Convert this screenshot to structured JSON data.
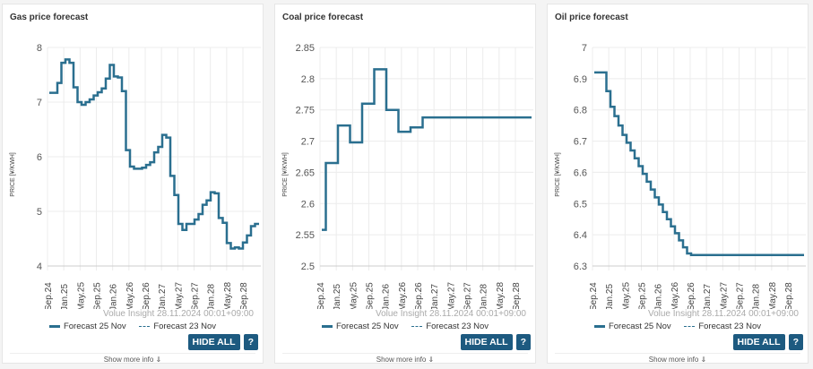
{
  "legend": {
    "series1": "Forecast 25 Nov",
    "series2": "Forecast 23 Nov"
  },
  "watermark": "Volue Insight 28.11.2024 00:01+09:00",
  "buttons": {
    "hide_all": "HIDE ALL",
    "help": "?"
  },
  "show_more": "Show more info ⇓",
  "colors": {
    "line": "#2a6f8f",
    "button": "#1d5a80"
  },
  "chart_data": [
    {
      "type": "line",
      "title": "Gas price forecast",
      "ylabel": "PRICE [¥/KWH]",
      "xlabel": "",
      "ylim": [
        4,
        8
      ],
      "yticks": [
        "4",
        "5",
        "6",
        "7",
        "8"
      ],
      "xticks": [
        "Sep.24",
        "Jan.25",
        "May.25",
        "Sep.25",
        "Jan.26",
        "May.26",
        "Sep.26",
        "Jan.27",
        "May.27",
        "Sep.27",
        "Jan.28",
        "May.28",
        "Sep.28"
      ],
      "series": [
        {
          "name": "Forecast 25 Nov",
          "step": true,
          "values": [
            7.17,
            7.17,
            7.35,
            7.72,
            7.78,
            7.72,
            7.27,
            7.0,
            6.95,
            7.0,
            7.05,
            7.12,
            7.18,
            7.25,
            7.43,
            7.68,
            7.47,
            7.45,
            7.2,
            6.12,
            5.82,
            5.78,
            5.78,
            5.8,
            5.85,
            5.9,
            6.08,
            6.18,
            6.4,
            6.35,
            5.65,
            5.3,
            4.77,
            4.66,
            4.77,
            4.77,
            4.85,
            4.95,
            5.12,
            5.2,
            5.35,
            5.33,
            4.88,
            4.79,
            4.42,
            4.32,
            4.34,
            4.32,
            4.43,
            4.56,
            4.73,
            4.77
          ]
        }
      ]
    },
    {
      "type": "line",
      "title": "Coal price forecast",
      "ylabel": "PRICE [¥/KWH]",
      "xlabel": "",
      "ylim": [
        2.5,
        2.85
      ],
      "yticks": [
        "2.5",
        "2.55",
        "2.6",
        "2.65",
        "2.7",
        "2.75",
        "2.8",
        "2.85"
      ],
      "xticks": [
        "Sep.24",
        "Jan.25",
        "May.25",
        "Sep.25",
        "Jan.26",
        "May.26",
        "Sep.26",
        "Jan.27",
        "May.27",
        "Sep.27",
        "Jan.28",
        "May.28",
        "Sep.28"
      ],
      "series": [
        {
          "name": "Forecast 25 Nov",
          "step": true,
          "values": [
            2.558,
            2.665,
            2.665,
            2.665,
            2.725,
            2.725,
            2.725,
            2.698,
            2.698,
            2.698,
            2.76,
            2.76,
            2.76,
            2.815,
            2.815,
            2.815,
            2.75,
            2.75,
            2.75,
            2.715,
            2.715,
            2.715,
            2.722,
            2.722,
            2.722,
            2.738,
            2.738,
            2.738,
            2.738,
            2.738,
            2.738,
            2.738,
            2.738,
            2.738,
            2.738,
            2.738,
            2.738,
            2.738,
            2.738,
            2.738,
            2.738,
            2.738,
            2.738,
            2.738,
            2.738,
            2.738,
            2.738,
            2.738,
            2.738,
            2.738,
            2.738,
            2.738
          ]
        }
      ]
    },
    {
      "type": "line",
      "title": "Oil price forecast",
      "ylabel": "PRICE [¥/KWH]",
      "xlabel": "",
      "ylim": [
        6.3,
        7
      ],
      "yticks": [
        "6.3",
        "6.4",
        "6.5",
        "6.6",
        "6.7",
        "6.8",
        "6.9",
        "7"
      ],
      "xticks": [
        "Sep.24",
        "Jan.25",
        "May.25",
        "Sep.25",
        "Jan.26",
        "May.26",
        "Sep.26",
        "Jan.27",
        "May.27",
        "Sep.27",
        "Jan.28",
        "May.28",
        "Sep.28"
      ],
      "series": [
        {
          "name": "Forecast 25 Nov",
          "step": true,
          "values": [
            6.92,
            6.92,
            6.92,
            6.86,
            6.81,
            6.78,
            6.75,
            6.72,
            6.695,
            6.67,
            6.645,
            6.62,
            6.595,
            6.57,
            6.545,
            6.52,
            6.497,
            6.473,
            6.45,
            6.427,
            6.405,
            6.382,
            6.36,
            6.34,
            6.335,
            6.335,
            6.335,
            6.335,
            6.335,
            6.335,
            6.335,
            6.335,
            6.335,
            6.335,
            6.335,
            6.335,
            6.335,
            6.335,
            6.335,
            6.335,
            6.335,
            6.335,
            6.335,
            6.335,
            6.335,
            6.335,
            6.335,
            6.335,
            6.335,
            6.335,
            6.335,
            6.335
          ]
        }
      ]
    }
  ]
}
